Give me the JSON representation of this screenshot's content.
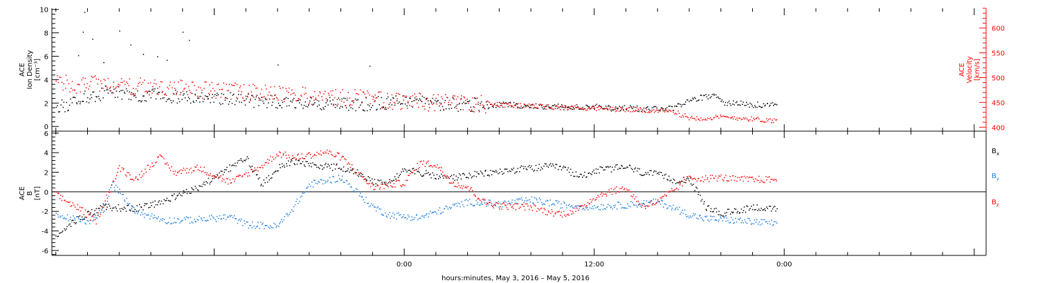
{
  "footer": {
    "xlabel": "hours:minutes, May  3, 2016 – May  5, 2016"
  },
  "colors": {
    "black": "#000000",
    "red": "#ff0000",
    "blue": "#1a7de0"
  },
  "chart_data": [
    {
      "type": "scatter",
      "panel": "top",
      "x_axis": {
        "unit": "hours from May 3 2016 00:00",
        "xlim": [
          -22.25,
          36.75
        ],
        "ticks": [
          {
            "x": 0,
            "label": "0:00"
          },
          {
            "x": 12,
            "label": "12:00"
          },
          {
            "x": 24,
            "label": "0:00"
          }
        ]
      },
      "left_axis": {
        "label_lines": [
          "ACE",
          "Ion Density",
          "[cm⁻³]"
        ],
        "ylim": [
          -0.4,
          10.1
        ],
        "ticks": [
          0,
          2,
          4,
          6,
          8,
          10
        ],
        "color": "#000000"
      },
      "right_axis": {
        "label_lines": [
          "ACE",
          "Velocity",
          "[km/s]"
        ],
        "ylim": [
          392,
          640
        ],
        "ticks": [
          400,
          450,
          500,
          550,
          600
        ],
        "color": "#ff0000"
      },
      "series": [
        {
          "axis": "left",
          "color": "#000000",
          "outliers": [
            [
              -20.2,
              9.8
            ],
            [
              -20.3,
              8.1
            ],
            [
              -19.7,
              7.5
            ],
            [
              -18.0,
              8.2
            ],
            [
              -17.3,
              7.0
            ],
            [
              -16.5,
              6.2
            ],
            [
              -15.6,
              6.0
            ],
            [
              -15.0,
              5.7
            ],
            [
              -14.0,
              8.1
            ],
            [
              -13.6,
              7.4
            ],
            [
              -8.0,
              5.3
            ],
            [
              -2.2,
              5.2
            ],
            [
              -20.6,
              6.1
            ],
            [
              -19.0,
              5.5
            ]
          ],
          "points": [
            [
              -22.0,
              1.6
            ],
            [
              -21.0,
              2.0
            ],
            [
              -20.0,
              2.6
            ],
            [
              -19.0,
              2.9
            ],
            [
              -17.5,
              2.8
            ],
            [
              -16.0,
              2.7
            ],
            [
              -14.0,
              2.6
            ],
            [
              -12.0,
              2.4
            ],
            [
              -10.0,
              2.3
            ],
            [
              -8.0,
              2.2
            ],
            [
              -6.0,
              2.0
            ],
            [
              -4.0,
              1.9
            ],
            [
              -2.0,
              2.0
            ],
            [
              0.0,
              2.1
            ],
            [
              2.0,
              2.0
            ],
            [
              4.0,
              1.9
            ],
            [
              6.0,
              1.9
            ],
            [
              8.0,
              1.8
            ],
            [
              10.0,
              1.7
            ],
            [
              12.0,
              1.7
            ],
            [
              14.0,
              1.6
            ],
            [
              16.0,
              1.5
            ],
            [
              17.0,
              1.6
            ],
            [
              18.0,
              2.4
            ],
            [
              19.0,
              2.5
            ],
            [
              19.6,
              2.9
            ],
            [
              20.0,
              2.1
            ],
            [
              22.0,
              1.9
            ],
            [
              23.5,
              1.8
            ]
          ]
        },
        {
          "axis": "right",
          "color": "#ff0000",
          "points": [
            [
              -22.0,
              491
            ],
            [
              -21.0,
              488
            ],
            [
              -20.0,
              486
            ],
            [
              -19.0,
              489
            ],
            [
              -17.5,
              485
            ],
            [
              -16.0,
              482
            ],
            [
              -14.0,
              479
            ],
            [
              -12.0,
              475
            ],
            [
              -10.0,
              471
            ],
            [
              -8.0,
              467
            ],
            [
              -6.0,
              463
            ],
            [
              -4.0,
              460
            ],
            [
              -2.0,
              457
            ],
            [
              0.0,
              453
            ],
            [
              2.0,
              450
            ],
            [
              4.0,
              448
            ],
            [
              6.0,
              446
            ],
            [
              8.0,
              443
            ],
            [
              10.0,
              441
            ],
            [
              12.0,
              439
            ],
            [
              14.0,
              436
            ],
            [
              16.0,
              434
            ],
            [
              17.0,
              432
            ],
            [
              18.0,
              420
            ],
            [
              19.0,
              419
            ],
            [
              20.0,
              421
            ],
            [
              21.0,
              420
            ],
            [
              22.0,
              417
            ],
            [
              23.5,
              414
            ]
          ]
        }
      ]
    },
    {
      "type": "scatter",
      "panel": "bottom",
      "x_axis": {
        "unit": "hours from May 3 2016 00:00",
        "xlim": [
          -22.25,
          36.75
        ],
        "ticks": [
          {
            "x": 0,
            "label": "0:00"
          },
          {
            "x": 12,
            "label": "12:00"
          },
          {
            "x": 24,
            "label": "0:00"
          }
        ]
      },
      "left_axis": {
        "label_lines": [
          "ACE",
          "B",
          "[nT]"
        ],
        "ylim": [
          -6.5,
          6.2
        ],
        "ticks": [
          -6,
          -4,
          -2,
          0,
          2,
          4,
          6
        ],
        "color": "#000000"
      },
      "zero_line": true,
      "series": [
        {
          "name": "B",
          "sub": "x",
          "color": "#000000",
          "points": [
            [
              -22.0,
              -4.3
            ],
            [
              -20.5,
              -2.6
            ],
            [
              -19.0,
              -1.5
            ],
            [
              -17.0,
              -1.7
            ],
            [
              -15.0,
              -0.8
            ],
            [
              -13.0,
              0.5
            ],
            [
              -11.0,
              2.5
            ],
            [
              -10.0,
              3.5
            ],
            [
              -9.0,
              0.8
            ],
            [
              -8.0,
              2.5
            ],
            [
              -7.0,
              3.2
            ],
            [
              -6.0,
              2.8
            ],
            [
              -4.0,
              2.5
            ],
            [
              -3.0,
              2.0
            ],
            [
              -2.0,
              1.0
            ],
            [
              -1.0,
              0.9
            ],
            [
              0.0,
              2.5
            ],
            [
              1.0,
              2.0
            ],
            [
              2.0,
              1.6
            ],
            [
              3.0,
              1.5
            ],
            [
              5.0,
              1.9
            ],
            [
              7.0,
              2.3
            ],
            [
              9.0,
              2.6
            ],
            [
              10.0,
              2.5
            ],
            [
              11.0,
              1.6
            ],
            [
              12.0,
              2.2
            ],
            [
              14.0,
              2.6
            ],
            [
              15.0,
              2.0
            ],
            [
              16.0,
              1.8
            ],
            [
              17.0,
              1.2
            ],
            [
              18.0,
              1.4
            ],
            [
              19.0,
              -1.5
            ],
            [
              20.0,
              -2.2
            ],
            [
              21.0,
              -1.9
            ],
            [
              22.0,
              -1.5
            ],
            [
              23.5,
              -1.8
            ]
          ]
        },
        {
          "name": "B",
          "sub": "y",
          "color": "#1a7de0",
          "points": [
            [
              -22.0,
              -2.4
            ],
            [
              -20.0,
              -3.0
            ],
            [
              -19.0,
              -1.8
            ],
            [
              -18.5,
              0.9
            ],
            [
              -17.0,
              -2.0
            ],
            [
              -15.0,
              -2.9
            ],
            [
              -13.0,
              -2.8
            ],
            [
              -11.0,
              -2.5
            ],
            [
              -10.0,
              -3.3
            ],
            [
              -8.0,
              -3.5
            ],
            [
              -7.0,
              -1.5
            ],
            [
              -6.0,
              0.8
            ],
            [
              -4.0,
              1.5
            ],
            [
              -3.0,
              0.0
            ],
            [
              -2.0,
              -1.5
            ],
            [
              -1.0,
              -2.3
            ],
            [
              0.0,
              -2.5
            ],
            [
              1.0,
              -2.6
            ],
            [
              2.0,
              -2.0
            ],
            [
              4.0,
              -1.0
            ],
            [
              6.0,
              -1.2
            ],
            [
              8.0,
              -0.8
            ],
            [
              10.0,
              -1.3
            ],
            [
              12.0,
              -1.5
            ],
            [
              14.0,
              -1.3
            ],
            [
              16.0,
              -1.0
            ],
            [
              17.0,
              -1.6
            ],
            [
              18.0,
              -2.3
            ],
            [
              19.0,
              -2.7
            ],
            [
              20.0,
              -2.8
            ],
            [
              21.0,
              -2.9
            ],
            [
              23.5,
              -3.2
            ]
          ]
        },
        {
          "name": "B",
          "sub": "z",
          "color": "#ff0000",
          "points": [
            [
              -22.0,
              -0.3
            ],
            [
              -20.5,
              -1.7
            ],
            [
              -19.5,
              -3.0
            ],
            [
              -18.0,
              2.5
            ],
            [
              -17.0,
              1.3
            ],
            [
              -15.5,
              3.6
            ],
            [
              -14.5,
              2.0
            ],
            [
              -13.0,
              2.5
            ],
            [
              -11.0,
              1.0
            ],
            [
              -9.0,
              2.7
            ],
            [
              -8.0,
              4.0
            ],
            [
              -7.0,
              3.5
            ],
            [
              -5.0,
              4.1
            ],
            [
              -4.0,
              3.6
            ],
            [
              -2.0,
              0.5
            ],
            [
              0.0,
              1.0
            ],
            [
              1.0,
              3.0
            ],
            [
              2.0,
              2.8
            ],
            [
              3.0,
              1.0
            ],
            [
              4.0,
              0.5
            ],
            [
              5.0,
              -1.0
            ],
            [
              6.0,
              -1.4
            ],
            [
              8.0,
              -1.5
            ],
            [
              9.0,
              -2.0
            ],
            [
              10.0,
              -2.2
            ],
            [
              11.0,
              -1.8
            ],
            [
              12.0,
              -0.5
            ],
            [
              13.0,
              0.1
            ],
            [
              14.0,
              0.4
            ],
            [
              15.0,
              -1.4
            ],
            [
              16.0,
              -1.0
            ],
            [
              17.0,
              0.2
            ],
            [
              18.0,
              1.5
            ],
            [
              19.0,
              1.4
            ],
            [
              20.0,
              1.5
            ],
            [
              21.0,
              1.3
            ],
            [
              22.0,
              1.3
            ],
            [
              23.5,
              1.3
            ]
          ]
        }
      ],
      "legend": {
        "placement": "right",
        "entries": [
          {
            "text": "B",
            "sub": "x",
            "color": "#000000"
          },
          {
            "text": "B",
            "sub": "y",
            "color": "#1a7de0"
          },
          {
            "text": "B",
            "sub": "z",
            "color": "#ff0000"
          }
        ]
      }
    }
  ]
}
